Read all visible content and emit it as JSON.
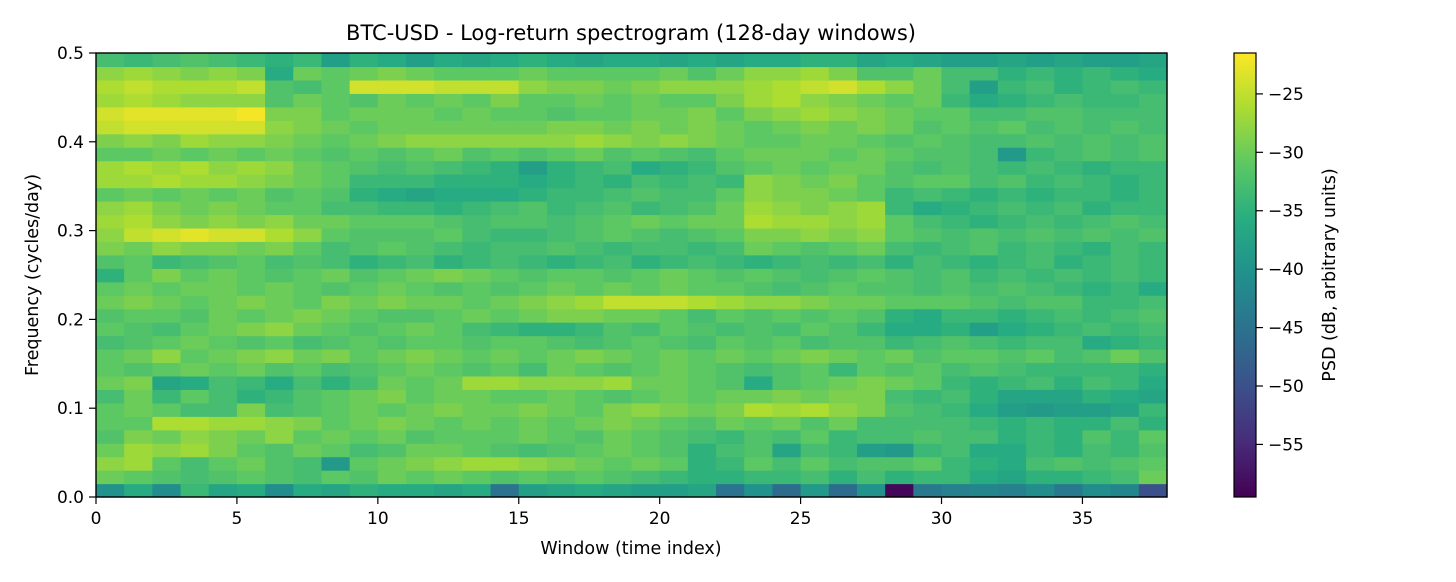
{
  "chart_data": {
    "type": "heatmap",
    "title": "BTC-USD - Log-return spectrogram (128-day windows)",
    "xlabel": "Window (time index)",
    "ylabel": "Frequency (cycles/day)",
    "colorbar_label": "PSD (dB, arbitrary units)",
    "colormap": "viridis",
    "xlim": [
      0,
      38
    ],
    "ylim": [
      0,
      0.5
    ],
    "x_ticks": [
      0,
      5,
      10,
      15,
      20,
      25,
      30,
      35
    ],
    "x_tick_labels": [
      "0",
      "5",
      "10",
      "15",
      "20",
      "25",
      "30",
      "35"
    ],
    "y_ticks": [
      0.0,
      0.1,
      0.2,
      0.3,
      0.4,
      0.5
    ],
    "y_tick_labels": [
      "0.0",
      "0.1",
      "0.2",
      "0.3",
      "0.4",
      "0.5"
    ],
    "color_range": [
      -59.5,
      -21.5
    ],
    "colorbar_ticks": [
      -25,
      -30,
      -35,
      -40,
      -45,
      -50,
      -55
    ],
    "colorbar_tick_labels": [
      "−25",
      "−30",
      "−35",
      "−40",
      "−45",
      "−50",
      "−55"
    ],
    "grid": false,
    "n_windows": 38,
    "frequencies_note": "",
    "z_rows_low_to_high_freq": [
      [
        -40,
        -36,
        -41,
        -34,
        -37,
        -36,
        -41,
        -36,
        -37,
        -35,
        -36,
        -36,
        -37,
        -36,
        -45,
        -38,
        -37,
        -36,
        -37,
        -38,
        -38,
        -37,
        -45,
        -40,
        -46,
        -39,
        -46,
        -40,
        -59,
        -44,
        -43,
        -42,
        -43,
        -41,
        -44,
        -41,
        -42,
        -50,
        -38
      ],
      [
        -30,
        -31,
        -32,
        -33,
        -32,
        -31,
        -32,
        -33,
        -31,
        -32,
        -30,
        -31,
        -30,
        -31,
        -32,
        -31,
        -32,
        -31,
        -32,
        -33,
        -34,
        -35,
        -35,
        -34,
        -34,
        -33,
        -35,
        -33,
        -35,
        -34,
        -34,
        -36,
        -37,
        -35,
        -35,
        -34,
        -33,
        -30,
        -31
      ],
      [
        -28,
        -27,
        -31,
        -33,
        -31,
        -30,
        -32,
        -33,
        -39,
        -31,
        -30,
        -29,
        -28,
        -27,
        -27,
        -28,
        -29,
        -30,
        -31,
        -30,
        -31,
        -35,
        -34,
        -31,
        -33,
        -31,
        -33,
        -32,
        -32,
        -31,
        -34,
        -35,
        -36,
        -33,
        -32,
        -33,
        -32,
        -31,
        -35
      ],
      [
        -30,
        -27,
        -28,
        -27,
        -29,
        -31,
        -32,
        -30,
        -31,
        -33,
        -32,
        -30,
        -30,
        -31,
        -32,
        -33,
        -32,
        -31,
        -30,
        -31,
        -32,
        -35,
        -33,
        -32,
        -37,
        -33,
        -34,
        -38,
        -39,
        -34,
        -33,
        -36,
        -36,
        -34,
        -35,
        -33,
        -34,
        -32,
        -27
      ],
      [
        -32,
        -29,
        -30,
        -28,
        -29,
        -30,
        -28,
        -31,
        -30,
        -31,
        -30,
        -32,
        -31,
        -31,
        -31,
        -30,
        -31,
        -32,
        -30,
        -31,
        -32,
        -33,
        -34,
        -32,
        -33,
        -31,
        -34,
        -33,
        -33,
        -32,
        -33,
        -33,
        -35,
        -34,
        -35,
        -32,
        -34,
        -31,
        -33
      ],
      [
        -31,
        -31,
        -26,
        -26,
        -27,
        -27,
        -28,
        -29,
        -31,
        -30,
        -29,
        -30,
        -31,
        -30,
        -31,
        -30,
        -31,
        -30,
        -29,
        -30,
        -31,
        -32,
        -30,
        -31,
        -30,
        -32,
        -30,
        -33,
        -33,
        -33,
        -33,
        -34,
        -35,
        -34,
        -35,
        -35,
        -33,
        -35,
        -35
      ],
      [
        -31,
        -30,
        -31,
        -33,
        -33,
        -29,
        -33,
        -32,
        -31,
        -30,
        -31,
        -30,
        -29,
        -30,
        -30,
        -29,
        -30,
        -31,
        -29,
        -28,
        -29,
        -30,
        -29,
        -26,
        -27,
        -26,
        -28,
        -29,
        -32,
        -33,
        -34,
        -36,
        -38,
        -39,
        -38,
        -38,
        -37,
        -34,
        -36
      ],
      [
        -33,
        -30,
        -34,
        -31,
        -33,
        -35,
        -34,
        -32,
        -31,
        -30,
        -29,
        -31,
        -30,
        -30,
        -31,
        -31,
        -30,
        -31,
        -32,
        -31,
        -30,
        -31,
        -30,
        -30,
        -29,
        -30,
        -29,
        -29,
        -33,
        -34,
        -33,
        -35,
        -37,
        -37,
        -37,
        -35,
        -36,
        -37,
        -35
      ],
      [
        -30,
        -29,
        -37,
        -36,
        -33,
        -34,
        -36,
        -33,
        -35,
        -33,
        -30,
        -31,
        -30,
        -27,
        -27,
        -28,
        -28,
        -28,
        -27,
        -30,
        -30,
        -31,
        -32,
        -36,
        -32,
        -31,
        -30,
        -29,
        -30,
        -31,
        -34,
        -35,
        -34,
        -33,
        -35,
        -33,
        -34,
        -36,
        -38
      ],
      [
        -31,
        -32,
        -31,
        -30,
        -31,
        -30,
        -32,
        -31,
        -33,
        -32,
        -31,
        -30,
        -31,
        -32,
        -31,
        -33,
        -30,
        -31,
        -32,
        -31,
        -30,
        -31,
        -32,
        -33,
        -32,
        -31,
        -34,
        -31,
        -32,
        -31,
        -33,
        -32,
        -33,
        -34,
        -34,
        -34,
        -34,
        -35,
        -32
      ],
      [
        -31,
        -30,
        -28,
        -31,
        -30,
        -29,
        -28,
        -30,
        -29,
        -31,
        -30,
        -29,
        -30,
        -31,
        -30,
        -31,
        -30,
        -29,
        -30,
        -31,
        -30,
        -31,
        -30,
        -31,
        -30,
        -29,
        -30,
        -31,
        -30,
        -32,
        -31,
        -31,
        -32,
        -31,
        -33,
        -32,
        -30,
        -32,
        -29
      ],
      [
        -33,
        -32,
        -31,
        -30,
        -31,
        -32,
        -31,
        -33,
        -32,
        -31,
        -32,
        -31,
        -31,
        -32,
        -31,
        -31,
        -32,
        -33,
        -32,
        -31,
        -32,
        -33,
        -31,
        -32,
        -31,
        -33,
        -32,
        -32,
        -34,
        -33,
        -32,
        -33,
        -34,
        -33,
        -33,
        -36,
        -35,
        -34,
        -31
      ],
      [
        -31,
        -32,
        -33,
        -31,
        -30,
        -29,
        -28,
        -30,
        -31,
        -32,
        -31,
        -30,
        -31,
        -33,
        -34,
        -35,
        -35,
        -34,
        -32,
        -33,
        -31,
        -32,
        -33,
        -32,
        -33,
        -31,
        -32,
        -34,
        -36,
        -36,
        -35,
        -38,
        -36,
        -35,
        -34,
        -33,
        -34,
        -33,
        -30
      ],
      [
        -32,
        -31,
        -31,
        -32,
        -30,
        -31,
        -30,
        -29,
        -30,
        -31,
        -32,
        -32,
        -31,
        -30,
        -31,
        -30,
        -29,
        -29,
        -30,
        -30,
        -31,
        -33,
        -31,
        -32,
        -31,
        -32,
        -31,
        -32,
        -35,
        -36,
        -34,
        -34,
        -35,
        -34,
        -33,
        -34,
        -33,
        -32,
        -31
      ],
      [
        -30,
        -29,
        -30,
        -31,
        -30,
        -29,
        -30,
        -31,
        -29,
        -30,
        -29,
        -30,
        -30,
        -31,
        -30,
        -29,
        -28,
        -27,
        -25,
        -25,
        -25,
        -26,
        -27,
        -28,
        -28,
        -29,
        -30,
        -30,
        -31,
        -31,
        -31,
        -32,
        -33,
        -32,
        -32,
        -34,
        -34,
        -33,
        -37
      ],
      [
        -31,
        -30,
        -31,
        -30,
        -30,
        -31,
        -30,
        -31,
        -32,
        -31,
        -30,
        -31,
        -32,
        -31,
        -32,
        -31,
        -30,
        -31,
        -30,
        -31,
        -30,
        -31,
        -31,
        -32,
        -33,
        -32,
        -31,
        -32,
        -32,
        -33,
        -32,
        -33,
        -32,
        -33,
        -34,
        -35,
        -34,
        -36,
        -34
      ],
      [
        -35,
        -31,
        -29,
        -31,
        -30,
        -31,
        -32,
        -31,
        -30,
        -32,
        -31,
        -30,
        -29,
        -30,
        -31,
        -32,
        -31,
        -31,
        -32,
        -31,
        -30,
        -31,
        -32,
        -31,
        -32,
        -33,
        -32,
        -31,
        -32,
        -33,
        -32,
        -34,
        -33,
        -34,
        -33,
        -34,
        -33,
        -34,
        -32
      ],
      [
        -32,
        -31,
        -34,
        -33,
        -32,
        -31,
        -33,
        -32,
        -33,
        -35,
        -34,
        -33,
        -35,
        -34,
        -33,
        -34,
        -35,
        -34,
        -33,
        -35,
        -34,
        -33,
        -34,
        -35,
        -34,
        -33,
        -34,
        -33,
        -35,
        -33,
        -34,
        -35,
        -34,
        -33,
        -35,
        -34,
        -33,
        -34,
        -36
      ],
      [
        -29,
        -30,
        -28,
        -29,
        -29,
        -30,
        -29,
        -31,
        -33,
        -32,
        -31,
        -32,
        -33,
        -34,
        -33,
        -33,
        -32,
        -33,
        -34,
        -33,
        -33,
        -34,
        -33,
        -30,
        -31,
        -32,
        -31,
        -30,
        -33,
        -34,
        -33,
        -32,
        -34,
        -33,
        -34,
        -35,
        -33,
        -34,
        -33
      ],
      [
        -28,
        -25,
        -24,
        -23,
        -24,
        -24,
        -26,
        -28,
        -31,
        -32,
        -32,
        -32,
        -31,
        -33,
        -34,
        -34,
        -33,
        -32,
        -31,
        -32,
        -33,
        -32,
        -31,
        -29,
        -29,
        -28,
        -29,
        -28,
        -31,
        -32,
        -33,
        -32,
        -33,
        -32,
        -33,
        -32,
        -33,
        -32,
        -30
      ],
      [
        -27,
        -26,
        -28,
        -29,
        -28,
        -29,
        -28,
        -30,
        -30,
        -31,
        -31,
        -31,
        -32,
        -33,
        -32,
        -32,
        -33,
        -32,
        -31,
        -30,
        -31,
        -30,
        -30,
        -26,
        -27,
        -27,
        -28,
        -27,
        -31,
        -33,
        -34,
        -35,
        -34,
        -33,
        -34,
        -33,
        -32,
        -33,
        -34
      ],
      [
        -28,
        -27,
        -29,
        -30,
        -29,
        -30,
        -31,
        -31,
        -33,
        -33,
        -34,
        -34,
        -35,
        -34,
        -33,
        -32,
        -34,
        -33,
        -32,
        -34,
        -33,
        -32,
        -30,
        -27,
        -28,
        -29,
        -28,
        -27,
        -34,
        -36,
        -35,
        -34,
        -33,
        -34,
        -33,
        -35,
        -34,
        -34,
        -33
      ],
      [
        -31,
        -30,
        -31,
        -30,
        -31,
        -30,
        -32,
        -31,
        -32,
        -35,
        -36,
        -37,
        -36,
        -36,
        -36,
        -35,
        -34,
        -34,
        -33,
        -32,
        -33,
        -33,
        -31,
        -28,
        -29,
        -29,
        -30,
        -31,
        -34,
        -33,
        -34,
        -35,
        -34,
        -35,
        -34,
        -34,
        -35,
        -34,
        -34
      ],
      [
        -27,
        -27,
        -26,
        -27,
        -27,
        -28,
        -29,
        -30,
        -31,
        -34,
        -34,
        -34,
        -35,
        -35,
        -35,
        -36,
        -35,
        -34,
        -35,
        -33,
        -34,
        -33,
        -34,
        -28,
        -29,
        -30,
        -29,
        -31,
        -32,
        -31,
        -31,
        -33,
        -32,
        -34,
        -33,
        -34,
        -35,
        -34,
        -33
      ],
      [
        -27,
        -26,
        -27,
        -26,
        -28,
        -27,
        -28,
        -30,
        -31,
        -32,
        -33,
        -32,
        -33,
        -34,
        -35,
        -38,
        -35,
        -34,
        -33,
        -36,
        -35,
        -34,
        -32,
        -31,
        -30,
        -31,
        -30,
        -30,
        -32,
        -33,
        -32,
        -33,
        -34,
        -33,
        -34,
        -35,
        -34,
        -34,
        -33
      ],
      [
        -31,
        -31,
        -30,
        -31,
        -30,
        -31,
        -30,
        -31,
        -32,
        -31,
        -32,
        -31,
        -30,
        -32,
        -31,
        -32,
        -31,
        -30,
        -32,
        -31,
        -32,
        -33,
        -31,
        -30,
        -30,
        -30,
        -31,
        -30,
        -31,
        -32,
        -32,
        -33,
        -39,
        -34,
        -33,
        -32,
        -33,
        -32,
        -33
      ],
      [
        -29,
        -28,
        -29,
        -27,
        -28,
        -28,
        -29,
        -30,
        -31,
        -30,
        -29,
        -28,
        -28,
        -28,
        -28,
        -28,
        -28,
        -27,
        -28,
        -29,
        -28,
        -29,
        -30,
        -31,
        -31,
        -30,
        -30,
        -31,
        -32,
        -31,
        -32,
        -33,
        -33,
        -32,
        -33,
        -32,
        -33,
        -32,
        -31
      ],
      [
        -25,
        -24,
        -24,
        -24,
        -24,
        -24,
        -28,
        -29,
        -30,
        -31,
        -30,
        -30,
        -30,
        -30,
        -30,
        -30,
        -29,
        -29,
        -30,
        -29,
        -30,
        -29,
        -30,
        -31,
        -30,
        -29,
        -30,
        -29,
        -30,
        -32,
        -31,
        -32,
        -31,
        -33,
        -32,
        -33,
        -32,
        -33,
        -34
      ],
      [
        -24,
        -23,
        -23,
        -23,
        -23,
        -22,
        -29,
        -29,
        -31,
        -30,
        -30,
        -30,
        -31,
        -30,
        -31,
        -31,
        -32,
        -31,
        -31,
        -30,
        -30,
        -29,
        -31,
        -29,
        -28,
        -27,
        -28,
        -29,
        -30,
        -31,
        -31,
        -33,
        -33,
        -32,
        -32,
        -33,
        -33,
        -33,
        -33
      ],
      [
        -27,
        -26,
        -27,
        -28,
        -28,
        -28,
        -32,
        -30,
        -31,
        -32,
        -30,
        -31,
        -30,
        -31,
        -29,
        -31,
        -31,
        -30,
        -31,
        -30,
        -31,
        -31,
        -29,
        -27,
        -26,
        -28,
        -29,
        -30,
        -31,
        -30,
        -34,
        -36,
        -35,
        -34,
        -33,
        -34,
        -34,
        -33,
        -34
      ],
      [
        -26,
        -25,
        -26,
        -26,
        -26,
        -25,
        -32,
        -33,
        -31,
        -24,
        -24,
        -24,
        -25,
        -25,
        -25,
        -28,
        -29,
        -29,
        -30,
        -29,
        -28,
        -28,
        -28,
        -27,
        -26,
        -25,
        -24,
        -26,
        -28,
        -30,
        -33,
        -38,
        -34,
        -33,
        -35,
        -34,
        -33,
        -34,
        -35
      ],
      [
        -28,
        -27,
        -28,
        -29,
        -28,
        -29,
        -36,
        -30,
        -31,
        -30,
        -29,
        -30,
        -31,
        -31,
        -31,
        -30,
        -31,
        -31,
        -31,
        -31,
        -30,
        -32,
        -30,
        -28,
        -28,
        -27,
        -29,
        -32,
        -32,
        -30,
        -33,
        -33,
        -35,
        -34,
        -35,
        -34,
        -35,
        -36,
        -35
      ],
      [
        -33,
        -34,
        -33,
        -32,
        -33,
        -34,
        -35,
        -34,
        -38,
        -35,
        -36,
        -38,
        -36,
        -37,
        -36,
        -35,
        -36,
        -37,
        -36,
        -36,
        -37,
        -36,
        -37,
        -36,
        -36,
        -35,
        -35,
        -37,
        -36,
        -37,
        -38,
        -38,
        -37,
        -38,
        -37,
        -38,
        -38,
        -37,
        -37
      ]
    ]
  }
}
